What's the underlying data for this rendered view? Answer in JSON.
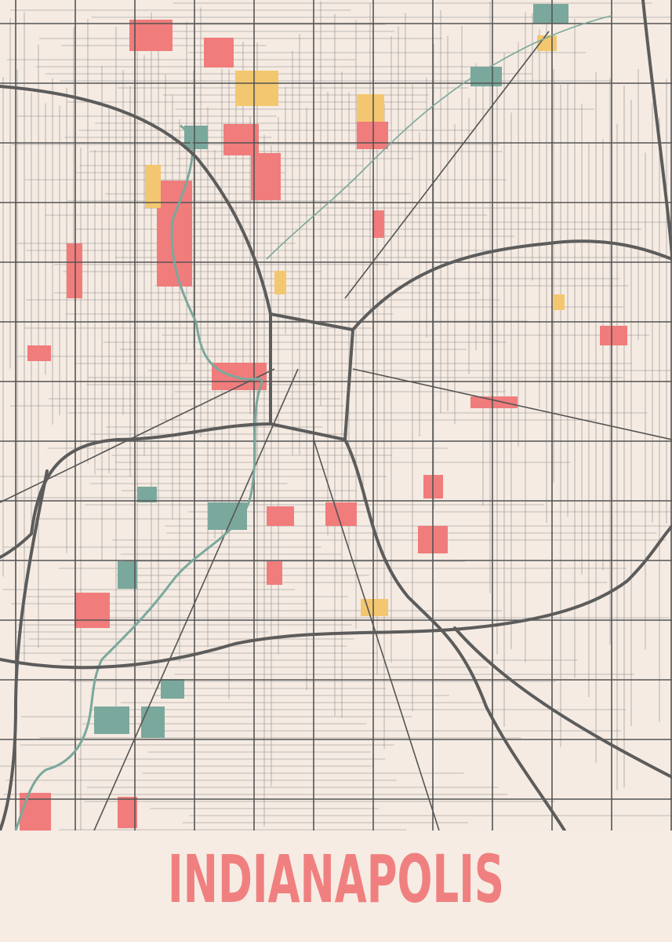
{
  "poster": {
    "city_name": "INDIANAPOLIS"
  },
  "colors": {
    "background": "#f6ece3",
    "map_land": "#f5ebe2",
    "streets_minor": "#8a8a8a",
    "streets_major": "#555555",
    "highways": "#5c5c5c",
    "river_water": "#7aa89c",
    "parks_red": "#f07c7c",
    "parks_yellow": "#f3c76f",
    "water_bodies": "#7aa89c",
    "title": "#f08080"
  }
}
